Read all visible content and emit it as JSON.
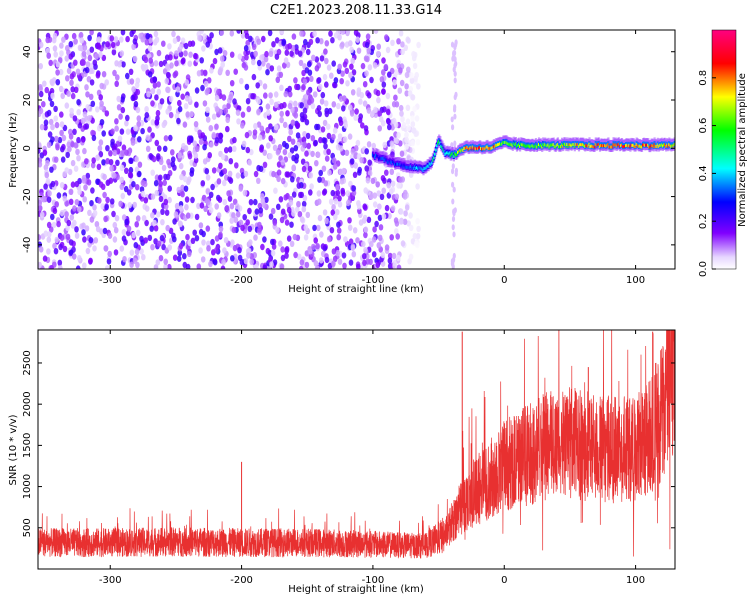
{
  "title": "C2E1.2023.208.11.33.G14",
  "chart_data": [
    {
      "type": "heatmap",
      "xlabel": "Height of straight line (km)",
      "ylabel": "Frequency (Hz)",
      "xlim": [
        -355,
        130
      ],
      "ylim": [
        -50,
        49
      ],
      "xticks": [
        -300,
        -200,
        -100,
        0,
        100
      ],
      "yticks": [
        -40,
        -20,
        0,
        20,
        40
      ],
      "colorbar": {
        "label": "Normalized spectral amplitude",
        "range": [
          0.0,
          1.0
        ],
        "ticks": [
          0.0,
          0.2,
          0.4,
          0.6,
          0.8
        ],
        "colors": [
          "#ffffff",
          "#8000ff",
          "#0000ff",
          "#00ffff",
          "#00ff00",
          "#ffff00",
          "#ff0000",
          "#ff0080"
        ]
      },
      "noise_region_x": [
        -355,
        -65
      ],
      "signal_track": {
        "x": [
          -100,
          -90,
          -80,
          -70,
          -62,
          -55,
          -50,
          -45,
          -38,
          -30,
          -20,
          -10,
          0,
          10,
          20,
          40,
          60,
          80,
          100,
          120,
          130
        ],
        "y": [
          -3,
          -5,
          -7,
          -8,
          -9,
          -6,
          3,
          -2,
          -3,
          0,
          0,
          0,
          2,
          1,
          1,
          1,
          1,
          1,
          1,
          1,
          1
        ],
        "amplitude": [
          0.3,
          0.3,
          0.3,
          0.35,
          0.4,
          0.45,
          0.5,
          0.45,
          0.55,
          0.8,
          0.85,
          0.8,
          0.6,
          0.6,
          0.6,
          0.65,
          0.75,
          0.85,
          0.8,
          0.75,
          0.7
        ]
      }
    },
    {
      "type": "line",
      "xlabel": "Height of straight line (km)",
      "ylabel": "SNR (10 * v/v)",
      "xlim": [
        -355,
        130
      ],
      "ylim": [
        0,
        2900
      ],
      "xticks": [
        -300,
        -200,
        -100,
        0,
        100
      ],
      "yticks": [
        500,
        1000,
        1500,
        2000,
        2500
      ],
      "color": "#e83030",
      "trend": {
        "x": [
          -355,
          -300,
          -250,
          -200,
          -150,
          -100,
          -60,
          -45,
          -35,
          -25,
          -10,
          0,
          20,
          40,
          60,
          80,
          100,
          110,
          120,
          130
        ],
        "y": [
          320,
          320,
          330,
          320,
          320,
          300,
          280,
          420,
          700,
          900,
          1100,
          1250,
          1400,
          1550,
          1500,
          1450,
          1450,
          1600,
          1900,
          2500
        ]
      },
      "spikes": [
        {
          "x": -200,
          "y": 1300
        },
        {
          "x": -32,
          "y": 2880
        },
        {
          "x": 64,
          "y": 2450
        },
        {
          "x": 113,
          "y": 2880
        }
      ]
    }
  ]
}
